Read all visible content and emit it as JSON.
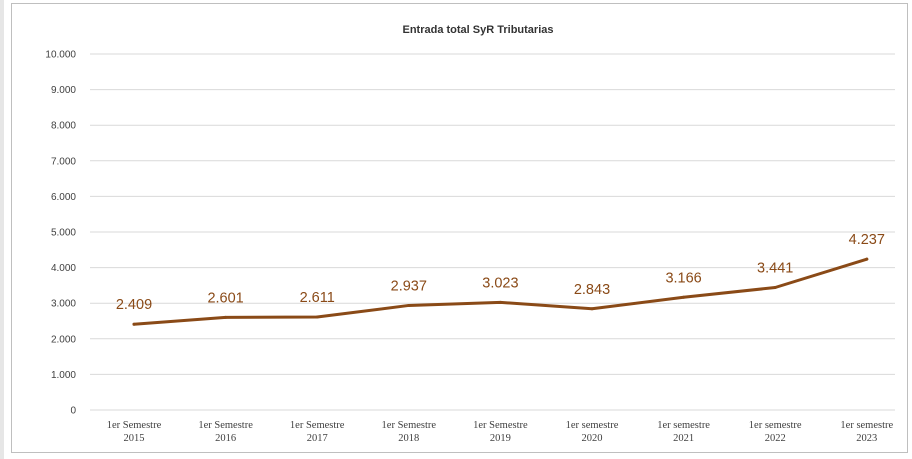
{
  "chart_data": {
    "type": "line",
    "title": "Entrada total SyR Tributarias",
    "categories": [
      [
        "1er Semestre",
        "2015"
      ],
      [
        "1er Semestre",
        "2016"
      ],
      [
        "1er Semestre",
        "2017"
      ],
      [
        "1er Semestre",
        "2018"
      ],
      [
        "1er Semestre",
        "2019"
      ],
      [
        "1er semestre",
        "2020"
      ],
      [
        "1er semestre",
        "2021"
      ],
      [
        "1er semestre",
        "2022"
      ],
      [
        "1er semestre",
        "2023"
      ]
    ],
    "values": [
      2409,
      2601,
      2611,
      2937,
      3023,
      2843,
      3166,
      3441,
      4237
    ],
    "data_labels": [
      "2.409",
      "2.601",
      "2.611",
      "2.937",
      "3.023",
      "2.843",
      "3.166",
      "3.441",
      "4.237"
    ],
    "yticks": [
      "0",
      "1.000",
      "2.000",
      "3.000",
      "4.000",
      "5.000",
      "6.000",
      "7.000",
      "8.000",
      "9.000",
      "10.000"
    ],
    "ylim": [
      0,
      10000
    ],
    "grid": true,
    "line_color": "#8a4a17",
    "grid_color": "#d9d9d9"
  }
}
